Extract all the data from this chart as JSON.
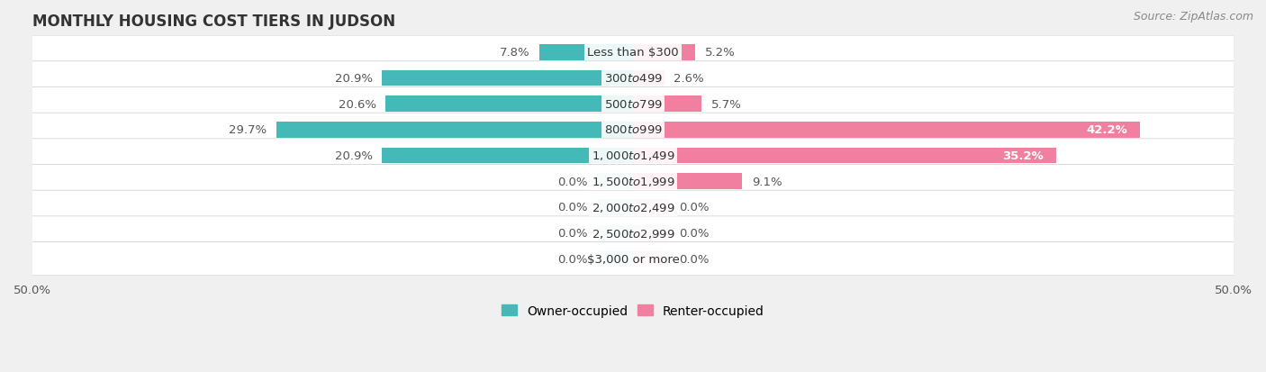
{
  "title": "MONTHLY HOUSING COST TIERS IN JUDSON",
  "source": "Source: ZipAtlas.com",
  "categories": [
    "Less than $300",
    "$300 to $499",
    "$500 to $799",
    "$800 to $999",
    "$1,000 to $1,499",
    "$1,500 to $1,999",
    "$2,000 to $2,499",
    "$2,500 to $2,999",
    "$3,000 or more"
  ],
  "owner_values": [
    7.8,
    20.9,
    20.6,
    29.7,
    20.9,
    0.0,
    0.0,
    0.0,
    0.0
  ],
  "renter_values": [
    5.2,
    2.6,
    5.7,
    42.2,
    35.2,
    9.1,
    0.0,
    0.0,
    0.0
  ],
  "owner_color": "#45b8b8",
  "renter_color": "#f07fa0",
  "owner_color_zero": "#a8d8d8",
  "renter_color_zero": "#f5bcd0",
  "background_color": "#f0f0f0",
  "row_bg_color": "#ffffff",
  "row_alt_color": "#e8e8ee",
  "axis_limit": 50.0,
  "bar_height": 0.62,
  "title_fontsize": 12,
  "value_fontsize": 9.5,
  "category_fontsize": 9.5,
  "legend_fontsize": 10,
  "source_fontsize": 9,
  "zero_stub": 3.0
}
